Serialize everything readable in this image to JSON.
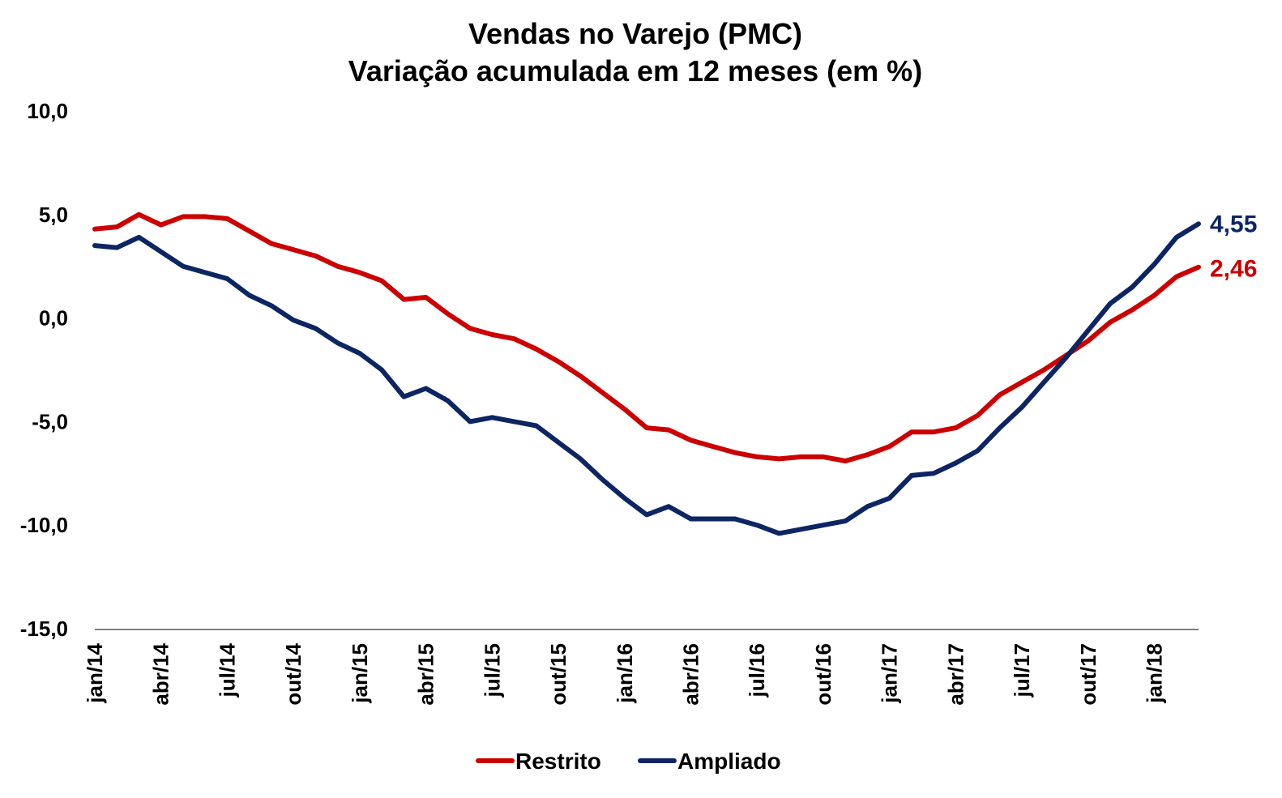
{
  "chart_data": {
    "type": "line",
    "title_lines": [
      "Vendas no Varejo (PMC)",
      "Variação acumulada em 12 meses (em %)"
    ],
    "xlabel": "",
    "ylabel": "",
    "ylim": [
      -15,
      10
    ],
    "yticks": [
      10,
      5,
      0,
      -5,
      -10,
      -15
    ],
    "ytick_labels": [
      "10,0",
      "5,0",
      "0,0",
      "-5,0",
      "-10,0",
      "-15,0"
    ],
    "x_tick_indices": [
      0,
      3,
      6,
      9,
      12,
      15,
      18,
      21,
      24,
      27,
      30,
      33,
      36,
      39,
      42,
      45,
      48
    ],
    "x_tick_labels": [
      "jan/14",
      "abr/14",
      "jul/14",
      "out/14",
      "jan/15",
      "abr/15",
      "jul/15",
      "out/15",
      "jan/16",
      "abr/16",
      "jul/16",
      "out/16",
      "jan/17",
      "abr/17",
      "jul/17",
      "out/17",
      "jan/18"
    ],
    "grid": false,
    "legend_position": "bottom-center",
    "series": [
      {
        "name": "Restrito",
        "color": "#cc0000",
        "end_label": "2,46",
        "values": [
          4.3,
          4.4,
          5.0,
          4.5,
          4.9,
          4.9,
          4.8,
          4.2,
          3.6,
          3.3,
          3.0,
          2.5,
          2.2,
          1.8,
          0.9,
          1.0,
          0.2,
          -0.5,
          -0.8,
          -1.0,
          -1.5,
          -2.1,
          -2.8,
          -3.6,
          -4.4,
          -5.3,
          -5.4,
          -5.9,
          -6.2,
          -6.5,
          -6.7,
          -6.8,
          -6.7,
          -6.7,
          -6.9,
          -6.6,
          -6.2,
          -5.5,
          -5.5,
          -5.3,
          -4.7,
          -3.7,
          -3.1,
          -2.5,
          -1.8,
          -1.1,
          -0.2,
          0.4,
          1.1,
          2.0,
          2.46
        ]
      },
      {
        "name": "Ampliado",
        "color": "#0d2563",
        "end_label": "4,55",
        "values": [
          3.5,
          3.4,
          3.9,
          3.2,
          2.5,
          2.2,
          1.9,
          1.1,
          0.6,
          -0.1,
          -0.5,
          -1.2,
          -1.7,
          -2.5,
          -3.8,
          -3.4,
          -4.0,
          -5.0,
          -4.8,
          -5.0,
          -5.2,
          -6.0,
          -6.8,
          -7.8,
          -8.7,
          -9.5,
          -9.1,
          -9.7,
          -9.7,
          -9.7,
          -10.0,
          -10.4,
          -10.2,
          -10.0,
          -9.8,
          -9.1,
          -8.7,
          -7.6,
          -7.5,
          -7.0,
          -6.4,
          -5.3,
          -4.3,
          -3.1,
          -1.9,
          -0.6,
          0.7,
          1.5,
          2.6,
          3.9,
          4.55
        ]
      }
    ]
  }
}
